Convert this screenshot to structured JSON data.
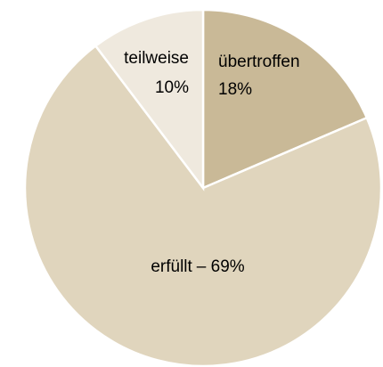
{
  "chart_data": {
    "type": "pie",
    "categories": [
      "übertroffen",
      "erfüllt",
      "teilweise"
    ],
    "values": [
      18,
      69,
      10
    ],
    "value_labels": [
      "18%",
      "– 69%",
      "10%"
    ],
    "colors": [
      "#c9b997",
      "#e0d5bd",
      "#efe9de"
    ]
  }
}
